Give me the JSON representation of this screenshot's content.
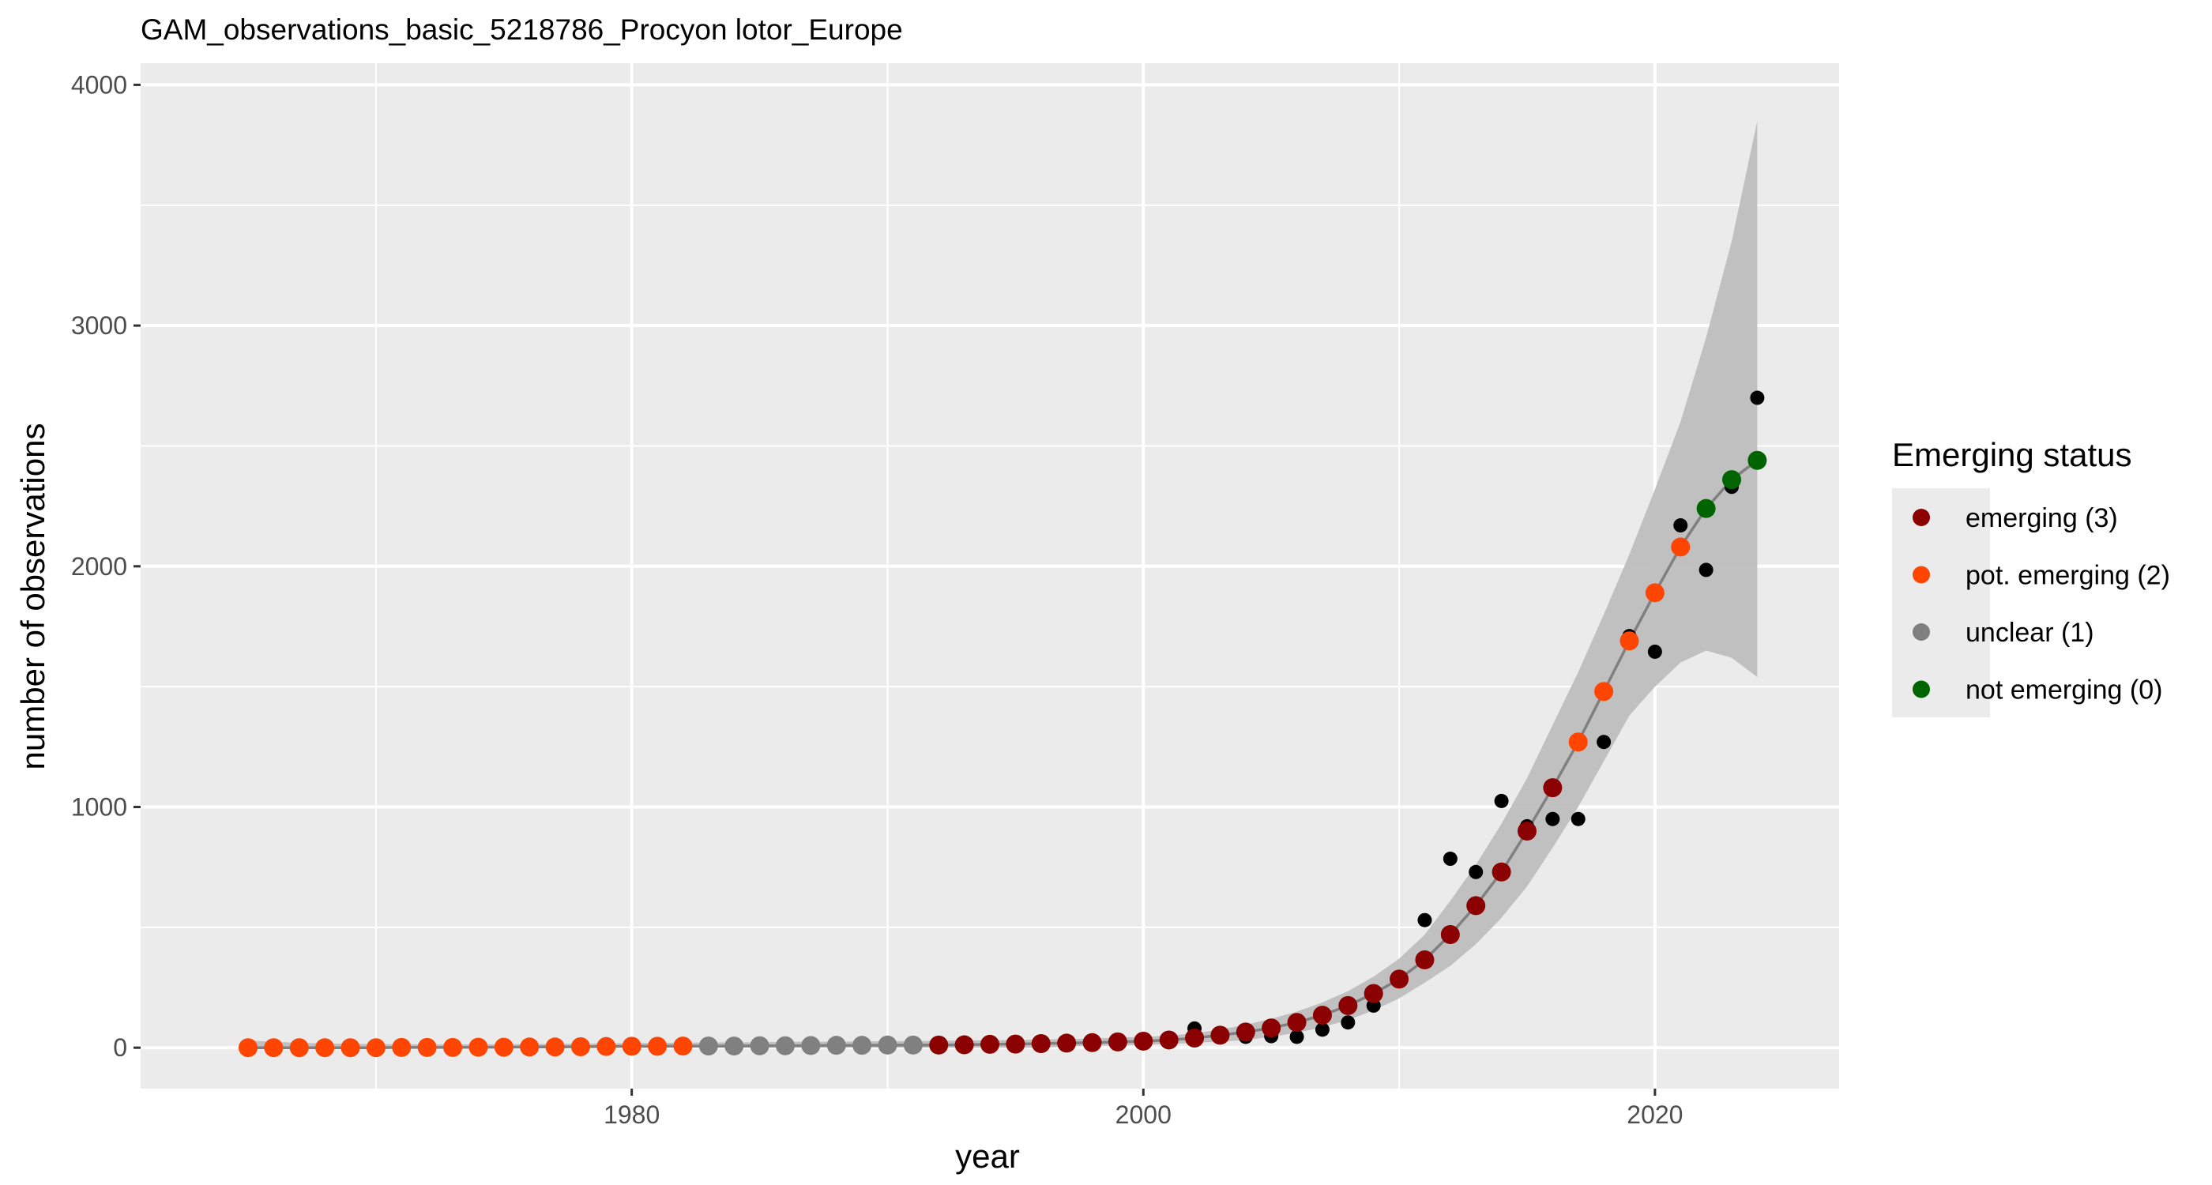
{
  "chart_data": {
    "type": "scatter",
    "title": "GAM_observations_basic_5218786_Procyon lotor_Europe",
    "xlabel": "year",
    "ylabel": "number of observations",
    "xlim": [
      1960.8,
      2027.2
    ],
    "ylim": [
      -170,
      4090
    ],
    "x_ticks": [
      1980,
      2000,
      2020
    ],
    "x_tick_labels": [
      "1980",
      "2000",
      "2020"
    ],
    "x_minor_ticks": [
      1970,
      1990,
      2010
    ],
    "y_ticks": [
      0,
      1000,
      2000,
      3000,
      4000
    ],
    "y_tick_labels": [
      "0",
      "1000",
      "2000",
      "3000",
      "4000"
    ],
    "y_minor_ticks": [
      500,
      1500,
      2500,
      3500
    ],
    "grid": true,
    "legend": {
      "title": "Emerging status",
      "position": "right",
      "entries": [
        {
          "label": "emerging (3)",
          "color": "#8B0000"
        },
        {
          "label": "pot. emerging (2)",
          "color": "#FF4500"
        },
        {
          "label": "unclear (1)",
          "color": "#808080"
        },
        {
          "label": "not emerging (0)",
          "color": "#006400"
        }
      ]
    },
    "colors": {
      "panel": "#EBEBEB",
      "grid": "#FFFFFF",
      "ribbon": "#BEBEBE",
      "fit_line": "#808080",
      "observed": "#000000",
      "text": "#000000",
      "tick_text": "#4D4D4D"
    },
    "observed": {
      "x": [
        1965,
        1966,
        1967,
        1968,
        1969,
        1970,
        1971,
        1972,
        1973,
        1974,
        1975,
        1976,
        1977,
        1978,
        1979,
        1980,
        1981,
        1982,
        1983,
        1984,
        1985,
        1986,
        1987,
        1988,
        1989,
        1990,
        1991,
        1992,
        1993,
        1994,
        1995,
        1996,
        1997,
        1998,
        1999,
        2000,
        2001,
        2002,
        2003,
        2004,
        2005,
        2006,
        2007,
        2008,
        2009,
        2010,
        2011,
        2012,
        2013,
        2014,
        2015,
        2016,
        2017,
        2018,
        2019,
        2020,
        2021,
        2022,
        2023,
        2024
      ],
      "y": [
        0,
        0,
        0,
        0,
        0,
        1,
        1,
        1,
        1,
        1,
        2,
        2,
        3,
        4,
        12,
        6,
        5,
        6,
        7,
        6,
        8,
        7,
        8,
        9,
        9,
        10,
        10,
        10,
        12,
        12,
        14,
        15,
        17,
        20,
        22,
        25,
        40,
        80,
        50,
        45,
        48,
        45,
        75,
        105,
        175,
        290,
        530,
        785,
        730,
        1025,
        920,
        950,
        950,
        1270,
        1710,
        1645,
        2170,
        1985,
        2330,
        2700
      ]
    },
    "fitted": {
      "x": [
        1965,
        1966,
        1967,
        1968,
        1969,
        1970,
        1971,
        1972,
        1973,
        1974,
        1975,
        1976,
        1977,
        1978,
        1979,
        1980,
        1981,
        1982,
        1983,
        1984,
        1985,
        1986,
        1987,
        1988,
        1989,
        1990,
        1991,
        1992,
        1993,
        1994,
        1995,
        1996,
        1997,
        1998,
        1999,
        2000,
        2001,
        2002,
        2003,
        2004,
        2005,
        2006,
        2007,
        2008,
        2009,
        2010,
        2011,
        2012,
        2013,
        2014,
        2015,
        2016,
        2017,
        2018,
        2019,
        2020,
        2021,
        2022,
        2023,
        2024
      ],
      "y": [
        0,
        0,
        0,
        0,
        0,
        0,
        1,
        1,
        1,
        2,
        2,
        3,
        3,
        4,
        5,
        6,
        6,
        7,
        7,
        7,
        8,
        8,
        9,
        10,
        10,
        11,
        11,
        11,
        12,
        14,
        15,
        17,
        19,
        21,
        24,
        27,
        32,
        40,
        52,
        65,
        82,
        105,
        135,
        175,
        225,
        285,
        365,
        470,
        590,
        730,
        900,
        1080,
        1270,
        1480,
        1690,
        1890,
        2080,
        2240,
        2360,
        2440
      ],
      "lower": [
        0,
        0,
        0,
        0,
        0,
        0,
        0,
        0,
        0,
        0,
        0,
        0,
        0,
        0,
        0,
        0,
        0,
        0,
        0,
        0,
        0,
        0,
        0,
        0,
        0,
        0,
        0,
        0,
        0,
        0,
        0,
        0,
        5,
        8,
        10,
        12,
        15,
        20,
        25,
        32,
        45,
        62,
        85,
        115,
        155,
        205,
        270,
        340,
        430,
        540,
        670,
        830,
        1000,
        1190,
        1380,
        1500,
        1600,
        1650,
        1620,
        1540
      ],
      "upper": [
        30,
        25,
        20,
        18,
        16,
        15,
        14,
        14,
        14,
        14,
        14,
        15,
        16,
        17,
        18,
        19,
        20,
        21,
        22,
        22,
        23,
        24,
        25,
        25,
        26,
        27,
        28,
        29,
        30,
        31,
        32,
        34,
        36,
        38,
        42,
        45,
        50,
        60,
        75,
        95,
        120,
        150,
        188,
        235,
        295,
        370,
        470,
        610,
        760,
        930,
        1120,
        1340,
        1560,
        1800,
        2050,
        2320,
        2600,
        2950,
        3350,
        3850
      ],
      "status": [
        2,
        2,
        2,
        2,
        2,
        2,
        2,
        2,
        2,
        2,
        2,
        2,
        2,
        2,
        2,
        2,
        2,
        2,
        1,
        1,
        1,
        1,
        1,
        1,
        1,
        1,
        1,
        3,
        3,
        3,
        3,
        3,
        3,
        3,
        3,
        3,
        3,
        3,
        3,
        3,
        3,
        3,
        3,
        3,
        3,
        3,
        3,
        3,
        3,
        3,
        3,
        3,
        2,
        2,
        2,
        2,
        2,
        0,
        0,
        0
      ]
    }
  }
}
